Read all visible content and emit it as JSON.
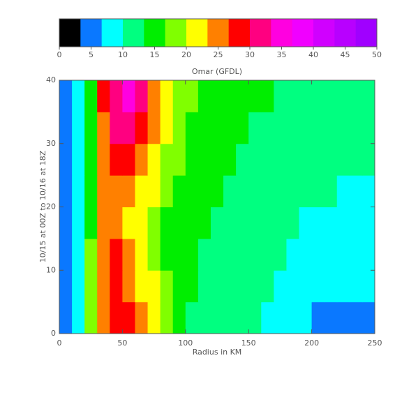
{
  "chart_data": {
    "type": "contour",
    "title": "Omar (GFDL)",
    "x_label": "Radius in KM",
    "y_label": "10/15 at 00Z to 10/16 at 18Z",
    "xlim": [
      0,
      250
    ],
    "ylim": [
      0,
      40
    ],
    "xticks": [
      0,
      50,
      100,
      150,
      200,
      250
    ],
    "yticks": [
      0,
      10,
      20,
      30,
      40
    ],
    "colorbar": {
      "lim": [
        0,
        50
      ],
      "ticks": [
        0,
        5,
        10,
        15,
        20,
        25,
        30,
        35,
        40,
        45,
        50
      ],
      "colors": [
        "#000000",
        "#0a78ff",
        "#00ffff",
        "#00ff80",
        "#00ee00",
        "#80ff00",
        "#ffff00",
        "#ff8000",
        "#ff0000",
        "#ff0080",
        "#ff00e0",
        "#f000ff",
        "#d000ff",
        "#b800ff",
        "#a000ff"
      ]
    },
    "x": [
      5,
      15,
      25,
      35,
      45,
      55,
      65,
      75,
      85,
      95,
      105,
      115,
      125,
      135,
      145,
      155,
      165,
      175,
      185,
      195,
      205,
      215,
      225,
      235,
      245
    ],
    "y": [
      2.5,
      7.5,
      12.5,
      17.5,
      22.5,
      27.5,
      32.5,
      37.5
    ],
    "z": [
      [
        5,
        9,
        18,
        24,
        29,
        28,
        24,
        20,
        18,
        15,
        13,
        12,
        11,
        10.5,
        10,
        10,
        9.5,
        9,
        8.5,
        7,
        6.5,
        6.5,
        6.5,
        6,
        6
      ],
      [
        5,
        9,
        17,
        24,
        28,
        26,
        23,
        20,
        17,
        15,
        13.5,
        13,
        12,
        11.5,
        11,
        10.5,
        10,
        9.5,
        9,
        9,
        8.5,
        8.5,
        8,
        8,
        7.5
      ],
      [
        5,
        9,
        17,
        25,
        27,
        24,
        21,
        19,
        16,
        15,
        14,
        13,
        12.5,
        12,
        11.5,
        11,
        10.5,
        10,
        9.5,
        9,
        9,
        9,
        8.5,
        8.5,
        8.5
      ],
      [
        5,
        9,
        16,
        25,
        25,
        22,
        20,
        18,
        16,
        15,
        14,
        13.5,
        13,
        12.5,
        12,
        11.5,
        11,
        10.5,
        10,
        9.5,
        9.5,
        9.5,
        9,
        9,
        9
      ],
      [
        5,
        9,
        15,
        24,
        25,
        25,
        22,
        20,
        18,
        16.5,
        15,
        14,
        13.5,
        13,
        12.5,
        12,
        11.5,
        11,
        10.5,
        10,
        10,
        10,
        9.5,
        9.5,
        9.5
      ],
      [
        5,
        9,
        15,
        25,
        29,
        29,
        26,
        22,
        19,
        17,
        16,
        15,
        14,
        13.5,
        13,
        12.5,
        12,
        11.5,
        11,
        11,
        10.5,
        10.5,
        10.5,
        10,
        10
      ],
      [
        5,
        9,
        15,
        26,
        32,
        32,
        29,
        24,
        20,
        18,
        16.5,
        15.5,
        14.5,
        14,
        13.5,
        13,
        12.5,
        12,
        12,
        11.5,
        11.5,
        11,
        11,
        11,
        10.5
      ],
      [
        5,
        9,
        16,
        27,
        33,
        34,
        31,
        25,
        21,
        19,
        17,
        16,
        15.5,
        15,
        14.5,
        14,
        13.5,
        13,
        13,
        12.5,
        12.5,
        12,
        12,
        12,
        11
      ]
    ]
  }
}
